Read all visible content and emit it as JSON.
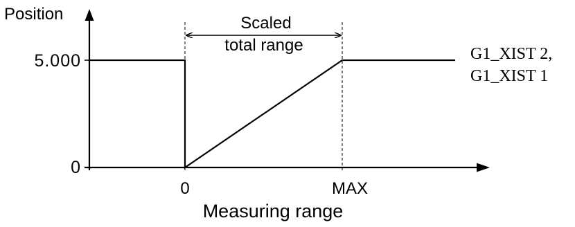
{
  "diagram": {
    "y_axis_label": "Position",
    "x_axis_label": "Measuring range",
    "y_ticks": {
      "top": "5.000",
      "bottom": "0"
    },
    "x_ticks": {
      "zero": "0",
      "max": "MAX"
    },
    "range_annotation": {
      "line1": "Scaled",
      "line2": "total range"
    },
    "series_label": {
      "line1": "G1_XIST 2,",
      "line2": "G1_XIST 1"
    },
    "colors": {
      "ink": "#000000",
      "background": "#ffffff"
    }
  }
}
